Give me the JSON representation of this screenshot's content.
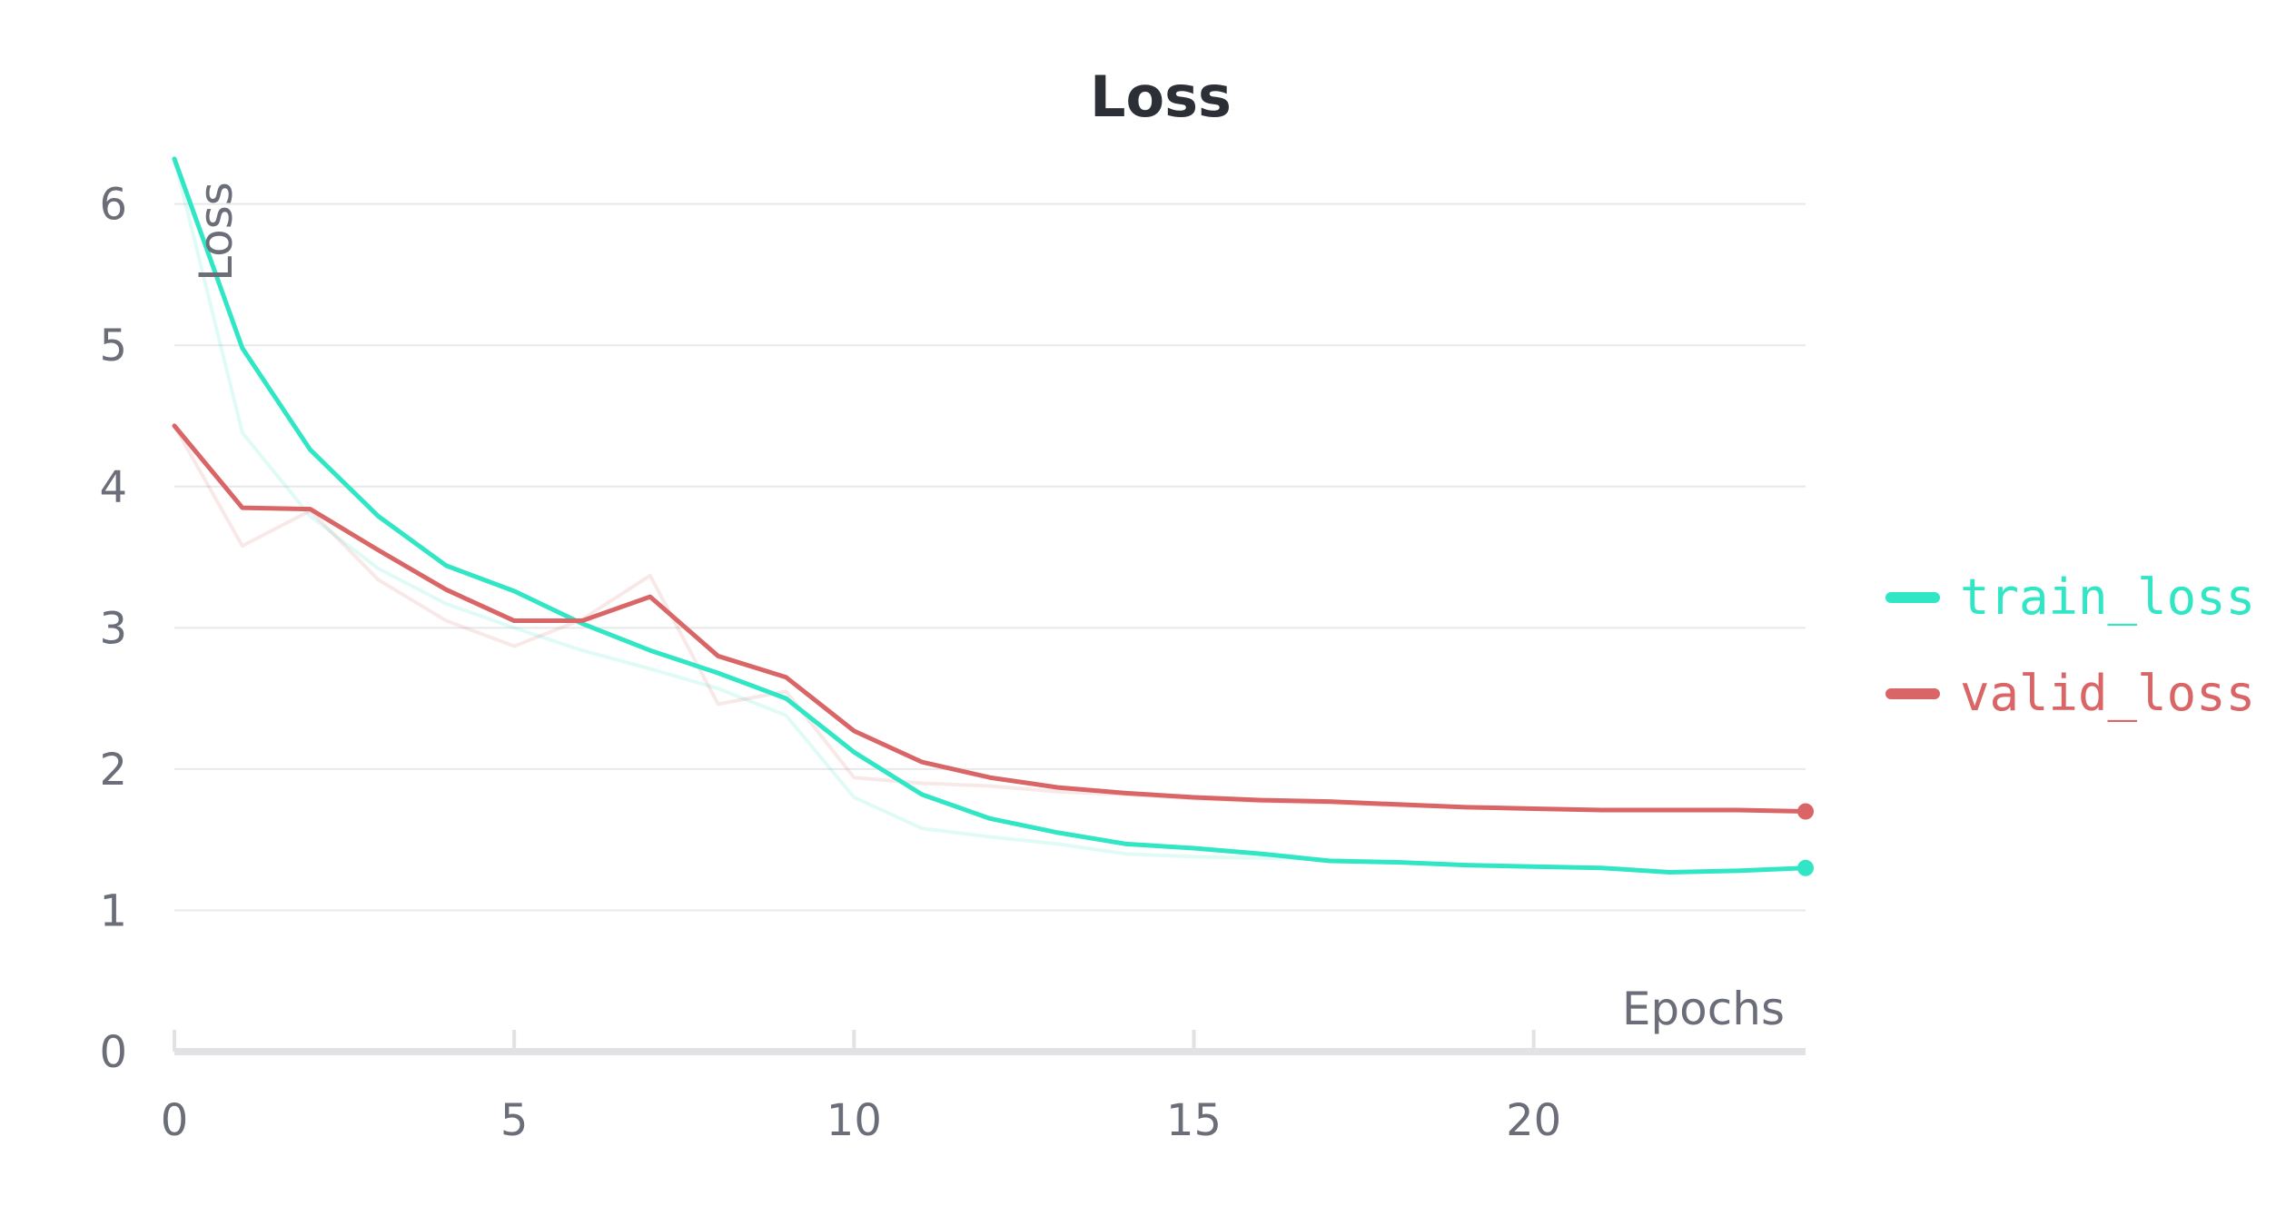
{
  "chart_data": {
    "type": "line",
    "title": "Loss",
    "xlabel": "Epochs",
    "ylabel": "Loss",
    "xlim": [
      0,
      24
    ],
    "ylim": [
      0,
      6.3
    ],
    "x_ticks": [
      0,
      5,
      10,
      15,
      20
    ],
    "y_ticks": [
      0,
      1,
      2,
      3,
      4,
      5,
      6
    ],
    "grid": true,
    "legend_position": "right",
    "x": [
      0,
      1,
      2,
      3,
      4,
      5,
      6,
      7,
      8,
      9,
      10,
      11,
      12,
      13,
      14,
      15,
      16,
      17,
      18,
      19,
      20,
      21,
      22,
      23,
      24
    ],
    "series": [
      {
        "name": "train_loss",
        "color": "#30e6c4",
        "values": [
          6.32,
          4.98,
          4.26,
          3.79,
          3.44,
          3.26,
          3.03,
          2.84,
          2.68,
          2.5,
          2.12,
          1.82,
          1.65,
          1.55,
          1.47,
          1.44,
          1.4,
          1.35,
          1.34,
          1.32,
          1.31,
          1.3,
          1.27,
          1.28,
          1.3
        ],
        "raw_values": [
          6.32,
          4.38,
          3.79,
          3.42,
          3.17,
          3.0,
          2.84,
          2.71,
          2.57,
          2.38,
          1.8,
          1.58,
          1.52,
          1.47,
          1.4,
          1.38,
          1.37,
          1.36,
          1.34,
          1.32,
          1.31,
          1.3,
          1.27,
          1.28,
          1.3
        ]
      },
      {
        "name": "valid_loss",
        "color": "#d96566",
        "values": [
          4.43,
          3.85,
          3.84,
          3.55,
          3.27,
          3.05,
          3.05,
          3.22,
          2.8,
          2.65,
          2.27,
          2.05,
          1.94,
          1.87,
          1.83,
          1.8,
          1.78,
          1.77,
          1.75,
          1.73,
          1.72,
          1.71,
          1.71,
          1.71,
          1.7
        ],
        "raw_values": [
          4.43,
          3.58,
          3.83,
          3.34,
          3.05,
          2.87,
          3.06,
          3.37,
          2.46,
          2.55,
          1.94,
          1.9,
          1.88,
          1.84,
          1.82,
          1.79,
          1.77,
          1.76,
          1.74,
          1.73,
          1.72,
          1.71,
          1.71,
          1.71,
          1.7
        ]
      }
    ]
  }
}
